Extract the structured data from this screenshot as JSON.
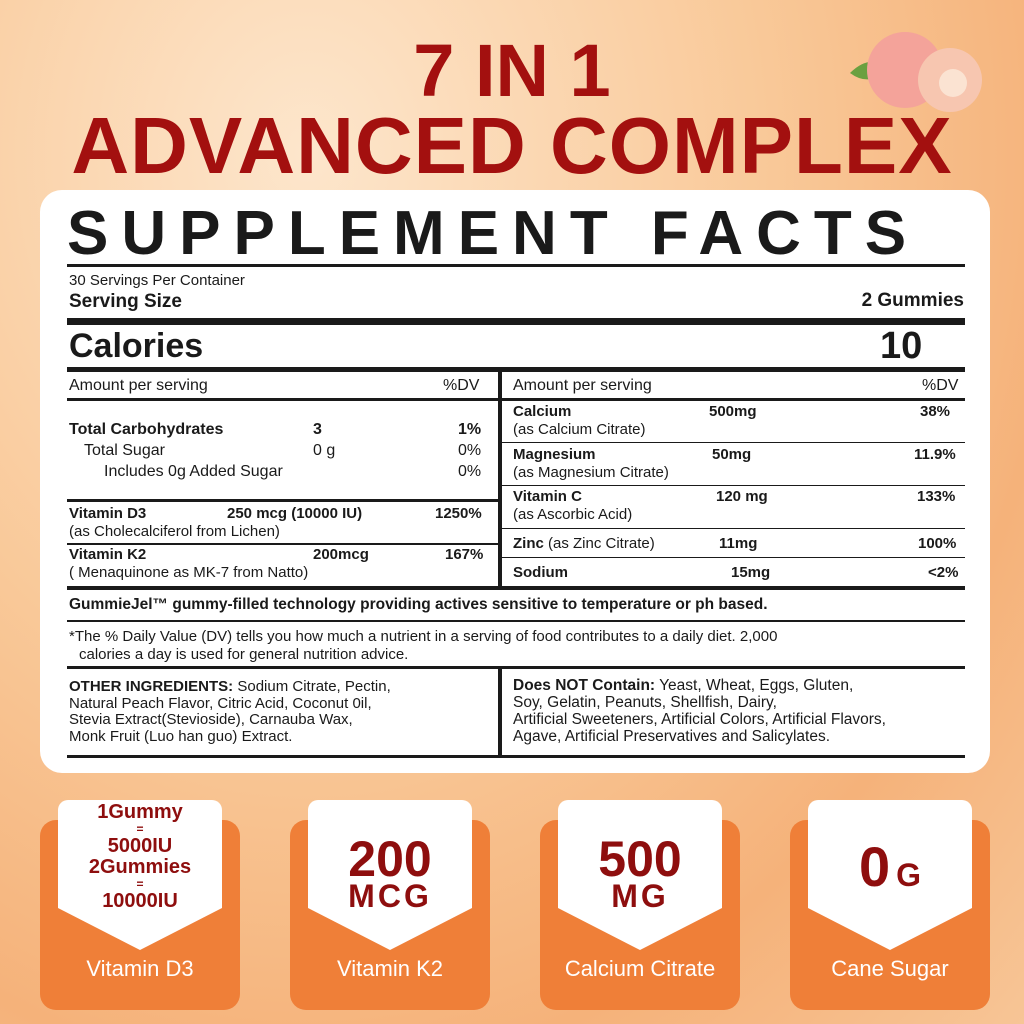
{
  "headline": {
    "line1": "7 IN 1",
    "line2": "ADVANCED COMPLEX"
  },
  "facts": {
    "title": "SUPPLEMENT FACTS",
    "servings": "30 Servings Per Container",
    "serving_size_label": "Serving Size",
    "serving_size": "2 Gummies",
    "calories_label": "Calories",
    "calories": "10",
    "amount_header": "Amount per serving",
    "dv_header": "%DV",
    "left": [
      {
        "name": "Total Carbohydrates",
        "amount": "3",
        "dv": "1%"
      },
      {
        "name": "Total Sugar",
        "amount": "0 g",
        "dv": "0%"
      },
      {
        "name": "Includes 0g Added Sugar",
        "amount": "",
        "dv": "0%"
      },
      {
        "name": "Vitamin D3",
        "amount": "250 mcg (10000 IU)",
        "dv": "1250%",
        "sub": "(as Cholecalciferol from Lichen)"
      },
      {
        "name": "Vitamin K2",
        "amount": "200mcg",
        "dv": "167%",
        "sub": "( Menaquinone as MK-7 from Natto)"
      }
    ],
    "right": [
      {
        "name": "Calcium",
        "amount": "500mg",
        "dv": "38%",
        "sub": "(as Calcium Citrate)"
      },
      {
        "name": "Magnesium",
        "amount": "50mg",
        "dv": "11.9%",
        "sub": "(as Magnesium Citrate)"
      },
      {
        "name": "Vitamin C",
        "amount": "120 mg",
        "dv": "133%",
        "sub": "(as Ascorbic Acid)"
      },
      {
        "name": "Zinc",
        "name_suffix": " (as Zinc Citrate)",
        "amount": "11mg",
        "dv": "100%"
      },
      {
        "name": "Sodium",
        "amount": "15mg",
        "dv": "<2%"
      }
    ],
    "technology": "GummieJel™ gummy-filled technology providing actives sensitive to temperature or ph based.",
    "footnote_1": "*The % Daily Value (DV) tells you how much a nutrient in a serving of food contributes to a daily diet. 2,000",
    "footnote_2": "calories a day is used for general nutrition advice.",
    "other_label": "OTHER INGREDIENTS:",
    "other_lines": [
      " Sodium Citrate, Pectin,",
      "Natural Peach Flavor, Citric Acid, Coconut 0il,",
      "Stevia Extract(Stevioside), Carnauba Wax,",
      "Monk Fruit (Luo han guo) Extract."
    ],
    "not_label": "Does NOT Contain:",
    "not_lines": [
      " Yeast, Wheat, Eggs, Gluten,",
      "Soy, Gelatin, Peanuts, Shellfish, Dairy,",
      "Artificial Sweeteners, Artificial Colors, Artificial Flavors,",
      "Agave, Artificial Preservatives and Salicylates."
    ]
  },
  "badges": [
    {
      "lines": [
        "1Gummy",
        "=",
        "5000IU",
        "2Gummies",
        "=",
        "10000IU"
      ],
      "label": "Vitamin D3"
    },
    {
      "big": "200",
      "unit": "MCG",
      "label": "Vitamin K2"
    },
    {
      "big": "500",
      "unit": "MG",
      "label": "Calcium Citrate"
    },
    {
      "big": "0",
      "unit": "G",
      "label": "Cane Sugar"
    }
  ],
  "colors": {
    "headline": "#a3100f",
    "badge": "#ef7f38",
    "badge_text": "#8e0e0e"
  }
}
